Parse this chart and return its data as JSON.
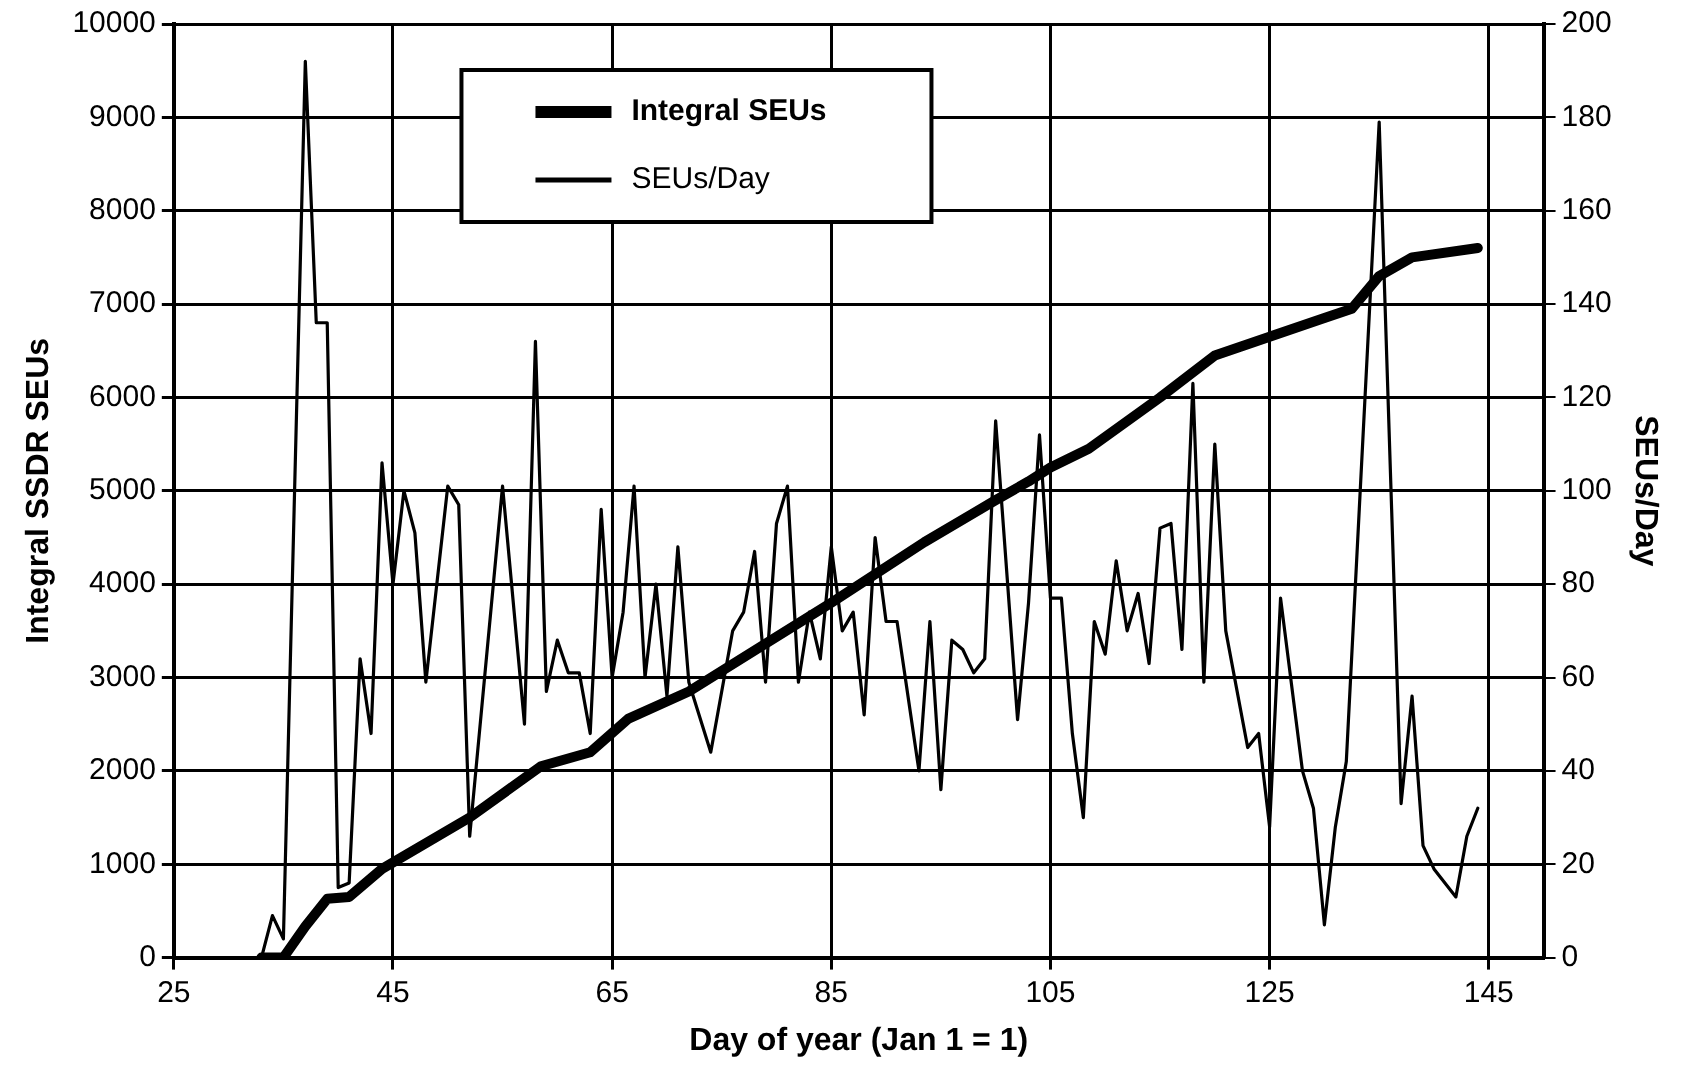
{
  "chart_data": {
    "type": "line",
    "xlabel": "Day of year (Jan 1 = 1)",
    "ylabel": "Integral SSDR SEUs",
    "y2label": "SEUs/Day",
    "xlim": [
      25,
      150
    ],
    "xticks": [
      25,
      45,
      65,
      85,
      105,
      125,
      145
    ],
    "ylim": [
      0,
      10000
    ],
    "yticks": [
      0,
      1000,
      2000,
      3000,
      4000,
      5000,
      6000,
      7000,
      8000,
      9000,
      10000
    ],
    "y2lim": [
      0,
      200
    ],
    "y2ticks": [
      0,
      20,
      40,
      60,
      80,
      100,
      120,
      140,
      160,
      180,
      200
    ],
    "grid": true,
    "legend": "top left",
    "marker": "none",
    "line_style": "solid",
    "series": [
      {
        "name": "Integral SEUs",
        "color": "#000000",
        "x": [
          33,
          35,
          37,
          39,
          41,
          44,
          52,
          58.5,
          63,
          66.5,
          72,
          85,
          93.5,
          100,
          103,
          105,
          108.5,
          115,
          120,
          125,
          130,
          132.5,
          135,
          138,
          144
        ],
        "values": [
          0,
          0,
          335,
          630,
          650,
          950,
          1500,
          2050,
          2200,
          2560,
          2850,
          3800,
          4450,
          4900,
          5100,
          5250,
          5450,
          6000,
          6450,
          6650,
          6850,
          6950,
          7300,
          7500,
          7600
        ]
      },
      {
        "name": "SEUs/Day",
        "color": "#000000",
        "axis": "y2",
        "x": [
          33,
          34,
          35,
          37,
          38,
          39,
          40,
          41,
          42,
          43,
          44,
          45,
          46,
          47,
          48,
          50,
          51,
          52,
          55,
          57,
          58,
          59,
          60,
          61,
          62,
          63,
          64,
          65,
          66,
          67,
          68,
          69,
          70,
          71,
          72,
          74,
          76,
          77,
          78,
          79,
          80,
          81,
          82,
          83,
          84,
          85,
          86,
          87,
          88,
          89,
          90,
          91,
          93,
          94,
          95,
          96,
          97,
          98,
          99,
          100,
          102,
          103,
          104,
          105,
          106,
          107,
          108,
          109,
          110,
          111,
          112,
          113,
          114,
          115,
          116,
          117,
          118,
          119,
          120,
          121,
          123,
          124,
          125,
          126,
          128,
          129,
          130,
          131,
          132,
          135,
          137,
          138,
          139,
          140,
          142,
          143,
          144
        ],
        "values": [
          0,
          9,
          4,
          192,
          136,
          136,
          15,
          16,
          64,
          48,
          106,
          80,
          100,
          91,
          59,
          101,
          97,
          26,
          101,
          50,
          132,
          57,
          68,
          61,
          61,
          48,
          96,
          60,
          74,
          101,
          60,
          80,
          56,
          88,
          59,
          44,
          70,
          74,
          87,
          59,
          93,
          101,
          59,
          74,
          64,
          88,
          70,
          74,
          52,
          90,
          72,
          72,
          40,
          72,
          36,
          68,
          66,
          61,
          64,
          115,
          51,
          76,
          112,
          77,
          77,
          48,
          30,
          72,
          65,
          85,
          70,
          78,
          63,
          92,
          93,
          66,
          123,
          59,
          110,
          70,
          45,
          48,
          28,
          77,
          40,
          32,
          7,
          28,
          42,
          179,
          33,
          56,
          24,
          19,
          13,
          26,
          32
        ]
      }
    ]
  }
}
